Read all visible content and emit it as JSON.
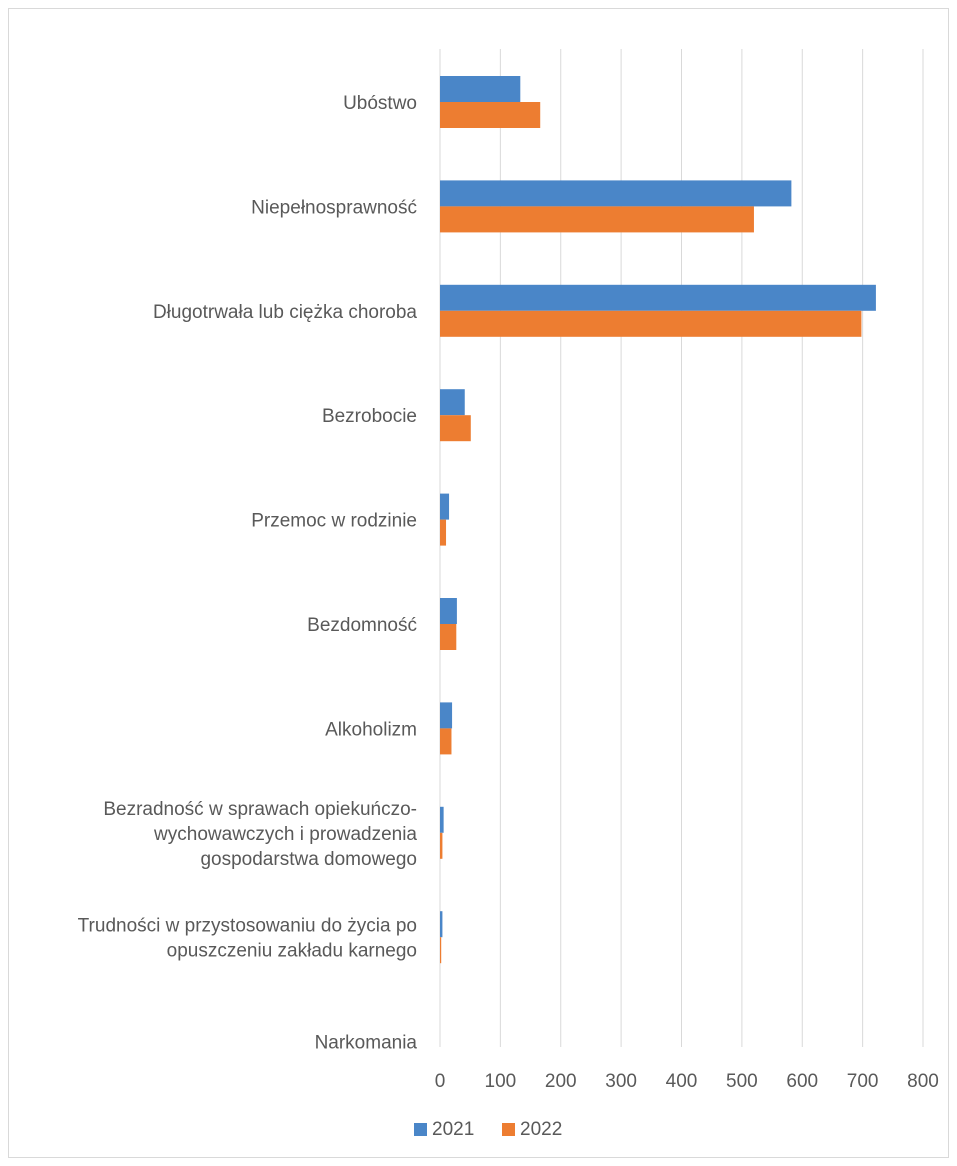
{
  "chart_data": {
    "type": "bar",
    "orientation": "horizontal",
    "categories": [
      [
        "Ubóstwo"
      ],
      [
        "Niepełnosprawność"
      ],
      [
        "Długotrwała lub ciężka choroba"
      ],
      [
        "Bezrobocie"
      ],
      [
        "Przemoc w rodzinie"
      ],
      [
        "Bezdomność"
      ],
      [
        "Alkoholizm"
      ],
      [
        "Bezradność w sprawach opiekuńczo-",
        "wychowawczych i prowadzenia",
        "gospodarstwa domowego"
      ],
      [
        "Trudności w przystosowaniu do życia po",
        "opuszczeniu zakładu karnego"
      ],
      [
        "Narkomania"
      ]
    ],
    "series": [
      {
        "name": "2021",
        "color": "#4a86c8",
        "values": [
          133,
          582,
          722,
          41,
          15,
          28,
          20,
          6,
          4,
          0
        ]
      },
      {
        "name": "2022",
        "color": "#ed7d31",
        "values": [
          166,
          520,
          698,
          51,
          10,
          27,
          19,
          4,
          2,
          0
        ]
      }
    ],
    "xlim": [
      0,
      800
    ],
    "x_ticks": [
      "0",
      "100",
      "200",
      "300",
      "400",
      "500",
      "600",
      "700",
      "800"
    ],
    "grid": true,
    "legend_position": "bottom"
  }
}
